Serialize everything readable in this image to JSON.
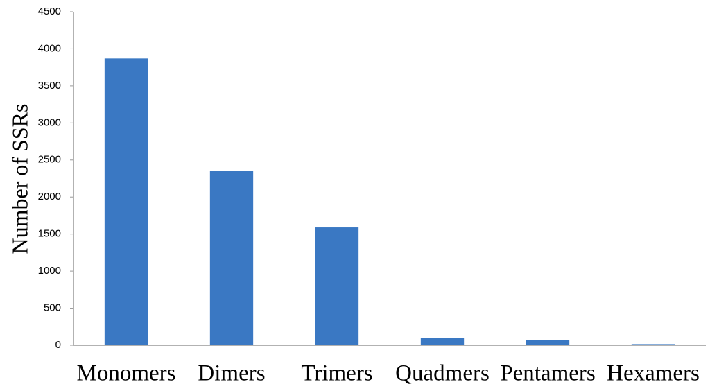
{
  "chart_data": {
    "type": "bar",
    "y_label": "Number of SSRs",
    "categories": [
      "Monomers",
      "Dimers",
      "Trimers",
      "Quadmers",
      "Pentamers",
      "Hexamers"
    ],
    "values": [
      3870,
      2350,
      1590,
      100,
      70,
      15
    ],
    "color": "#3a78c3",
    "ylim": [
      0,
      4500
    ],
    "yticks": [
      0,
      500,
      1000,
      1500,
      2000,
      2500,
      3000,
      3500,
      4000,
      4500
    ],
    "grid": false
  }
}
